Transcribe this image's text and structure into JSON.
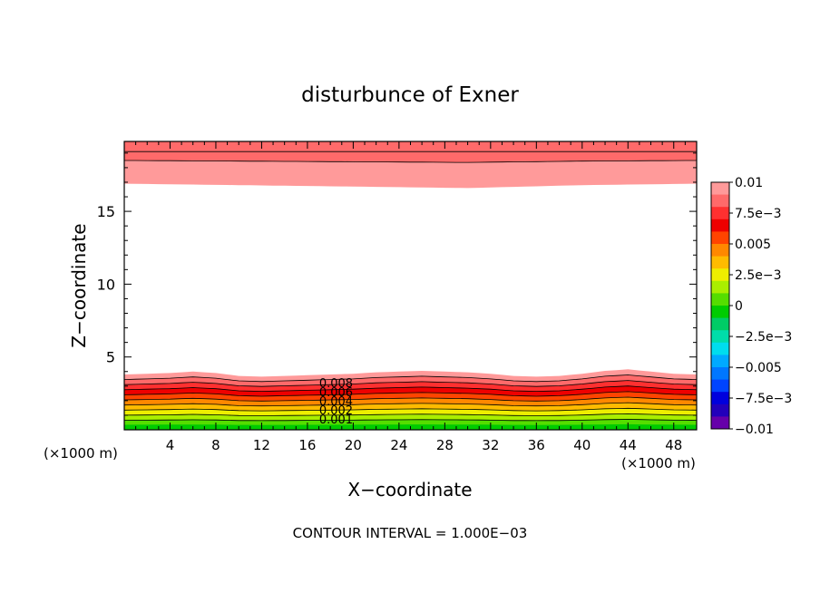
{
  "chart_data": {
    "type": "heatmap",
    "subtype": "filled-contour",
    "title": "disturbunce of Exner",
    "xlabel": "X−coordinate",
    "ylabel": "Z−coordinate",
    "x_unit_left": "(×1000 m)",
    "x_unit_right": "(×1000 m)",
    "xlim": [
      0,
      50
    ],
    "ylim": [
      0,
      19.8
    ],
    "xticks": [
      4,
      8,
      12,
      16,
      20,
      24,
      28,
      32,
      36,
      40,
      44,
      48
    ],
    "yticks": [
      5,
      10,
      15
    ],
    "footer": "CONTOUR INTERVAL = 1.000E−03",
    "contour_interval": 0.001,
    "contour_labels": [
      "0.008",
      "0.006",
      "0.004",
      "0.002",
      "0.001"
    ],
    "colorbar": {
      "tick_labels": [
        "0.01",
        "7.5e−3",
        "0.005",
        "2.5e−3",
        "0",
        "−2.5e−3",
        "−0.005",
        "−7.5e−3",
        "−0.01"
      ],
      "colors": [
        "#ff9a9a",
        "#ff6a6a",
        "#ff3030",
        "#ee0000",
        "#ff4400",
        "#ff8800",
        "#ffbb00",
        "#eeee00",
        "#aaee00",
        "#55dd00",
        "#00cc00",
        "#00cc66",
        "#00ddaa",
        "#00ddee",
        "#00aaff",
        "#0077ff",
        "#0044ff",
        "#0000dd",
        "#2200bb",
        "#6600aa"
      ]
    },
    "surface_profile": {
      "x": [
        0,
        2,
        4,
        6,
        8,
        10,
        12,
        14,
        16,
        18,
        20,
        22,
        24,
        26,
        28,
        30,
        32,
        34,
        36,
        38,
        40,
        42,
        44,
        46,
        48,
        50
      ],
      "z": [
        3.8,
        3.85,
        3.9,
        4.0,
        3.9,
        3.7,
        3.65,
        3.7,
        3.75,
        3.8,
        3.85,
        3.95,
        4.0,
        4.05,
        4.0,
        3.95,
        3.85,
        3.7,
        3.65,
        3.7,
        3.85,
        4.05,
        4.15,
        4.0,
        3.85,
        3.8
      ]
    },
    "top_profile": {
      "x": [
        0,
        10,
        20,
        30,
        40,
        50
      ],
      "z": [
        16.9,
        16.8,
        16.7,
        16.6,
        16.8,
        16.9
      ]
    }
  }
}
